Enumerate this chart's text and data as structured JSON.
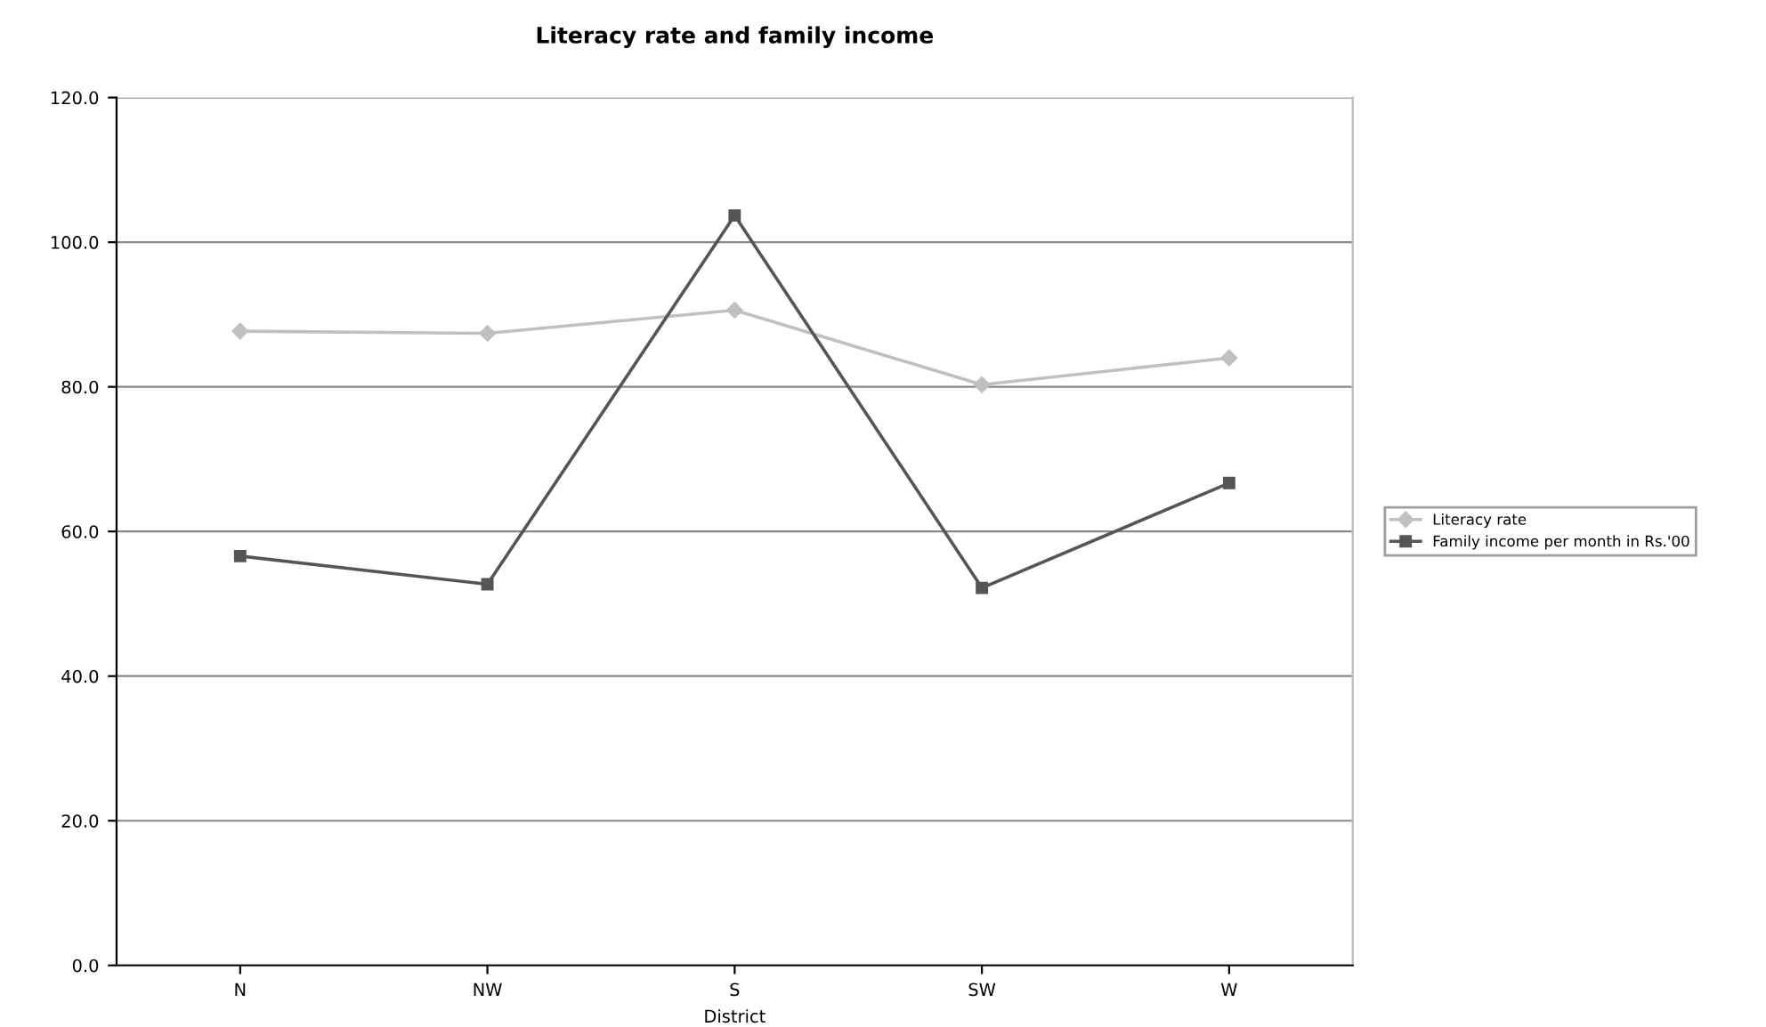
{
  "chart_data": {
    "type": "line",
    "title": "Literacy rate and family income",
    "xlabel": "District",
    "categories": [
      "N",
      "NW",
      "S",
      "SW",
      "W"
    ],
    "series": [
      {
        "name": "Literacy rate",
        "color": "#c0c0c0",
        "marker": "diamond",
        "values": [
          87.7,
          87.4,
          90.6,
          80.3,
          84.0
        ]
      },
      {
        "name": "Family income per month in Rs.'00",
        "color": "#555555",
        "marker": "square",
        "values": [
          56.6,
          52.7,
          103.7,
          52.2,
          66.7
        ]
      }
    ],
    "ylim": [
      0,
      120
    ],
    "yticks": [
      {
        "value": 0,
        "label": "0.0"
      },
      {
        "value": 20,
        "label": "20.0"
      },
      {
        "value": 40,
        "label": "40.0"
      },
      {
        "value": 60,
        "label": "60.0"
      },
      {
        "value": 80,
        "label": "80.0"
      },
      {
        "value": 100,
        "label": "100.0"
      },
      {
        "value": 120,
        "label": "120.0"
      }
    ],
    "grid": "y",
    "legend": "right",
    "line_style": "solid"
  }
}
